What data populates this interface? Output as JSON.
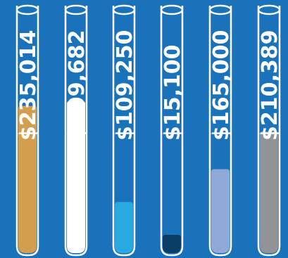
{
  "background_color": "#1a72bb",
  "chart_data": {
    "type": "bar",
    "style": "test-tube fill gauges",
    "categories": [
      "",
      "",
      "",
      "",
      "",
      ""
    ],
    "labels": [
      "$235,014",
      "$309,682",
      "$109,250",
      "$15,100",
      "$165,000",
      "$210,389"
    ],
    "fill_fraction": [
      0.605,
      0.625,
      0.21,
      0.075,
      0.345,
      0.5
    ],
    "colors": [
      "#d49e4f",
      "#ffffff",
      "#28a9df",
      "#0a3e66",
      "#8fa9d8",
      "#919395"
    ],
    "tube_outline_color": "#ffffff",
    "grid": false,
    "legend": "none"
  }
}
